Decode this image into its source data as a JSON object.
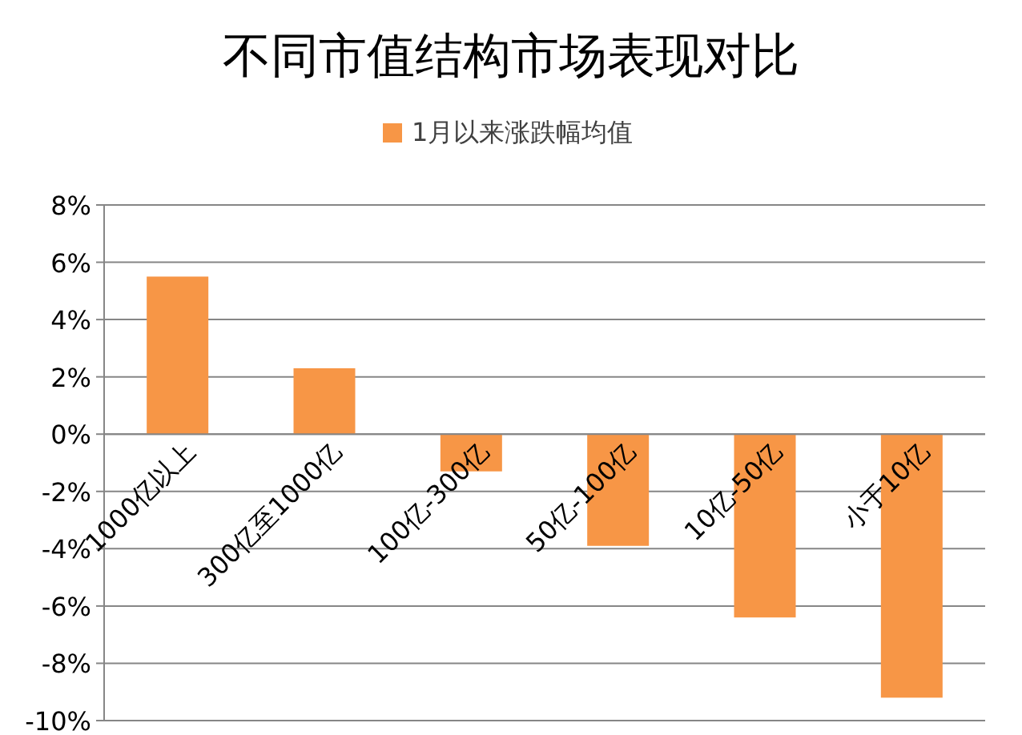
{
  "chart_data": {
    "type": "bar",
    "title": "不同市值结构市场表现对比",
    "categories": [
      "1000亿以上",
      "300亿至1000亿",
      "100亿-300亿",
      "50亿-100亿",
      "10亿-50亿",
      "小于10亿"
    ],
    "series": [
      {
        "name": "1月以来涨跌幅均值",
        "color": "#f79646",
        "values": [
          5.5,
          2.3,
          -1.3,
          -3.9,
          -6.4,
          -9.2
        ]
      }
    ],
    "ylim": [
      -10,
      8
    ],
    "yticks": [
      {
        "value": -10,
        "label": "-10%"
      },
      {
        "value": -8,
        "label": "-8%"
      },
      {
        "value": -6,
        "label": "-6%"
      },
      {
        "value": -4,
        "label": "-4%"
      },
      {
        "value": -2,
        "label": "-2%"
      },
      {
        "value": 0,
        "label": "0%"
      },
      {
        "value": 2,
        "label": "2%"
      },
      {
        "value": 4,
        "label": "4%"
      },
      {
        "value": 6,
        "label": "6%"
      },
      {
        "value": 8,
        "label": "8%"
      }
    ],
    "grid": "y",
    "legend": "top"
  }
}
